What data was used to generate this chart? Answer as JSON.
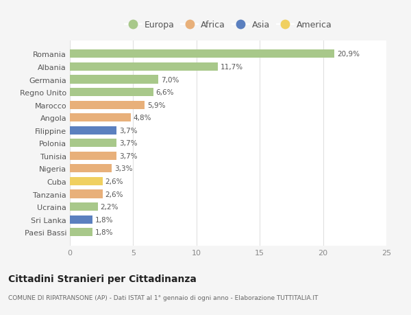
{
  "categories": [
    "Romania",
    "Albania",
    "Germania",
    "Regno Unito",
    "Marocco",
    "Angola",
    "Filippine",
    "Polonia",
    "Tunisia",
    "Nigeria",
    "Cuba",
    "Tanzania",
    "Ucraina",
    "Sri Lanka",
    "Paesi Bassi"
  ],
  "values": [
    20.9,
    11.7,
    7.0,
    6.6,
    5.9,
    4.8,
    3.7,
    3.7,
    3.7,
    3.3,
    2.6,
    2.6,
    2.2,
    1.8,
    1.8
  ],
  "labels": [
    "20,9%",
    "11,7%",
    "7,0%",
    "6,6%",
    "5,9%",
    "4,8%",
    "3,7%",
    "3,7%",
    "3,7%",
    "3,3%",
    "2,6%",
    "2,6%",
    "2,2%",
    "1,8%",
    "1,8%"
  ],
  "continents": [
    "Europa",
    "Europa",
    "Europa",
    "Europa",
    "Africa",
    "Africa",
    "Asia",
    "Europa",
    "Africa",
    "Africa",
    "America",
    "Africa",
    "Europa",
    "Asia",
    "Europa"
  ],
  "continent_colors": {
    "Europa": "#a8c88a",
    "Africa": "#e8b07a",
    "Asia": "#5b80bf",
    "America": "#f0d060"
  },
  "legend_order": [
    "Europa",
    "Africa",
    "Asia",
    "America"
  ],
  "xlim": [
    0,
    25
  ],
  "xticks": [
    0,
    5,
    10,
    15,
    20,
    25
  ],
  "title": "Cittadini Stranieri per Cittadinanza",
  "subtitle": "COMUNE DI RIPATRANSONE (AP) - Dati ISTAT al 1° gennaio di ogni anno - Elaborazione TUTTITALIA.IT",
  "background_color": "#f5f5f5",
  "bar_background": "#ffffff",
  "grid_color": "#e0e0e0"
}
